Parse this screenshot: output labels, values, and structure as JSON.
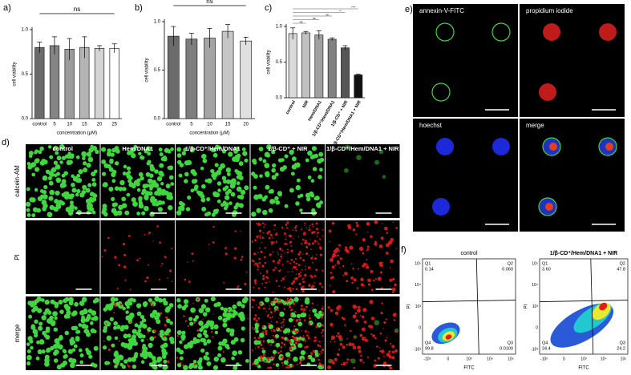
{
  "chart_data": [
    {
      "type": "bar",
      "title": "a)",
      "annotation": "ns",
      "ylabel": "cell viability",
      "xlabel": "concentration (μM)",
      "categories": [
        "control",
        "5",
        "10",
        "15",
        "20",
        "25"
      ],
      "values": [
        0.8,
        0.82,
        0.78,
        0.8,
        0.79,
        0.79
      ],
      "errors": [
        0.06,
        0.1,
        0.12,
        0.12,
        0.03,
        0.05
      ],
      "colors": [
        "#6b6b6b",
        "#858585",
        "#9b9b9b",
        "#b4b4b4",
        "#d4d4d4",
        "#ffffff"
      ],
      "ylim": [
        0,
        1
      ],
      "yticks": [
        {
          "value": 0,
          "label": "0.0"
        },
        0.5,
        {
          "value": 1,
          "label": "1.0"
        }
      ]
    },
    {
      "type": "bar",
      "title": "b)",
      "annotation": "ns",
      "ylabel": "cell viability",
      "xlabel": "concentration (μM)",
      "categories": [
        "control",
        "5",
        "10",
        "15",
        "20"
      ],
      "values": [
        0.85,
        0.82,
        0.83,
        0.9,
        0.8
      ],
      "errors": [
        0.1,
        0.06,
        0.1,
        0.07,
        0.04
      ],
      "colors": [
        "#6b6b6b",
        "#7e7e7e",
        "#a4a4a4",
        "#c6c6c6",
        "#e0e0e0"
      ],
      "ylim": [
        0,
        1
      ],
      "yticks": [
        {
          "value": 0,
          "label": "0.0"
        },
        0.5,
        {
          "value": 1,
          "label": "1.0"
        }
      ]
    },
    {
      "type": "bar",
      "title": "c)",
      "significance": [
        "ns",
        "ns",
        "ns",
        "**",
        "****"
      ],
      "ylabel": "cell viability",
      "categories": [
        "control",
        "NIR",
        "Hem/DNA1",
        "1/β-CD⁺/Hem/DNA1",
        "1/β-CD⁺ + NIR",
        "1/β-CD⁺/Hem/DNA1 + NIR"
      ],
      "values": [
        0.9,
        0.91,
        0.88,
        0.82,
        0.7,
        0.32
      ],
      "errors": [
        0.08,
        0.02,
        0.06,
        0.02,
        0.03,
        0.01
      ],
      "colors": [
        "#d9d9d9",
        "#c0c0c0",
        "#a0a0a0",
        "#808080",
        "#555555",
        "#111111"
      ],
      "ylim": [
        0,
        1
      ],
      "yticks": [
        {
          "value": 0,
          "label": "0.0"
        },
        0.5,
        {
          "value": 1,
          "label": "1.0"
        }
      ]
    }
  ],
  "panel_d": {
    "label": "d)",
    "columns": [
      "control",
      "Hem/DNA1",
      "1/β-CD⁺/Hem/DNA1",
      "1/β-CD⁺ + NIR",
      "1/β-CD⁺/Hem/DNA1 + NIR"
    ],
    "rows": [
      "calcein-AM",
      "PI",
      "merge"
    ]
  },
  "panel_e": {
    "label": "e)",
    "images": [
      "annexin-V-FITC",
      "propidium iodide",
      "hoechst",
      "merge"
    ]
  },
  "panel_f": {
    "label": "f)",
    "xlabel": "FITC",
    "ylabel": "PI",
    "xticks": [
      "-10³",
      "0",
      "10³",
      "10⁴",
      "10⁵"
    ],
    "yticks": [
      "10⁵",
      "10⁴",
      "10³",
      "0",
      "-10³"
    ],
    "plots": [
      {
        "title": "control",
        "quadrants": [
          {
            "name": "Q1",
            "value": "0.14"
          },
          {
            "name": "Q2",
            "value": "0.060"
          },
          {
            "name": "Q3",
            "value": "0.0100"
          },
          {
            "name": "Q4",
            "value": "99.8"
          }
        ]
      },
      {
        "title": "1/β-CD⁺/Hem/DNA1 + NIR",
        "quadrants": [
          {
            "name": "Q1",
            "value": "3.60"
          },
          {
            "name": "Q2",
            "value": "47.8"
          },
          {
            "name": "Q3",
            "value": "24.2"
          },
          {
            "name": "Q4",
            "value": "24.4"
          }
        ]
      }
    ]
  }
}
